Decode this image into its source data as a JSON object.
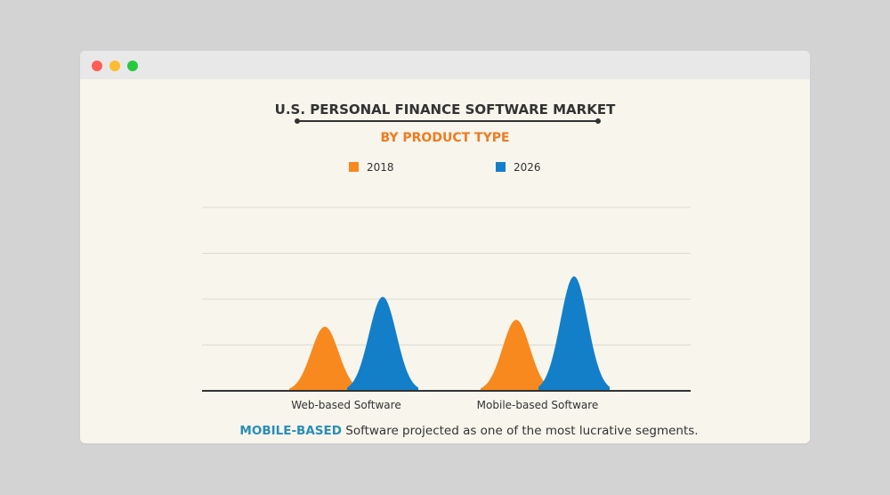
{
  "window": {
    "controls": [
      "close",
      "minimize",
      "maximize"
    ],
    "control_colors": {
      "close": "#fe5f57",
      "minimize": "#febc2e",
      "maximize": "#28c840"
    }
  },
  "colors": {
    "title": "#333333",
    "subtitle": "#f07a1f",
    "series_2018": "#f7891f",
    "series_2026": "#137fc9",
    "highlight": "#2a8db8",
    "text": "#333333",
    "grid": "#dcdbd2",
    "baseline": "#333333"
  },
  "chart_data": {
    "type": "area",
    "title": "U.S. PERSONAL FINANCE SOFTWARE MARKET",
    "subtitle": "BY PRODUCT TYPE",
    "categories": [
      "Web-based Software",
      "Mobile-based Software"
    ],
    "series": [
      {
        "name": "2018",
        "values": [
          2.8,
          3.1
        ]
      },
      {
        "name": "2026",
        "values": [
          4.1,
          5.0
        ]
      }
    ],
    "ylim": [
      0,
      8
    ],
    "grid": true,
    "legend_position": "top",
    "xlabel": "",
    "ylabel": ""
  },
  "footnote": {
    "highlight": "MOBILE-BASED",
    "rest": "Software projected as one of the most lucrative segments."
  }
}
